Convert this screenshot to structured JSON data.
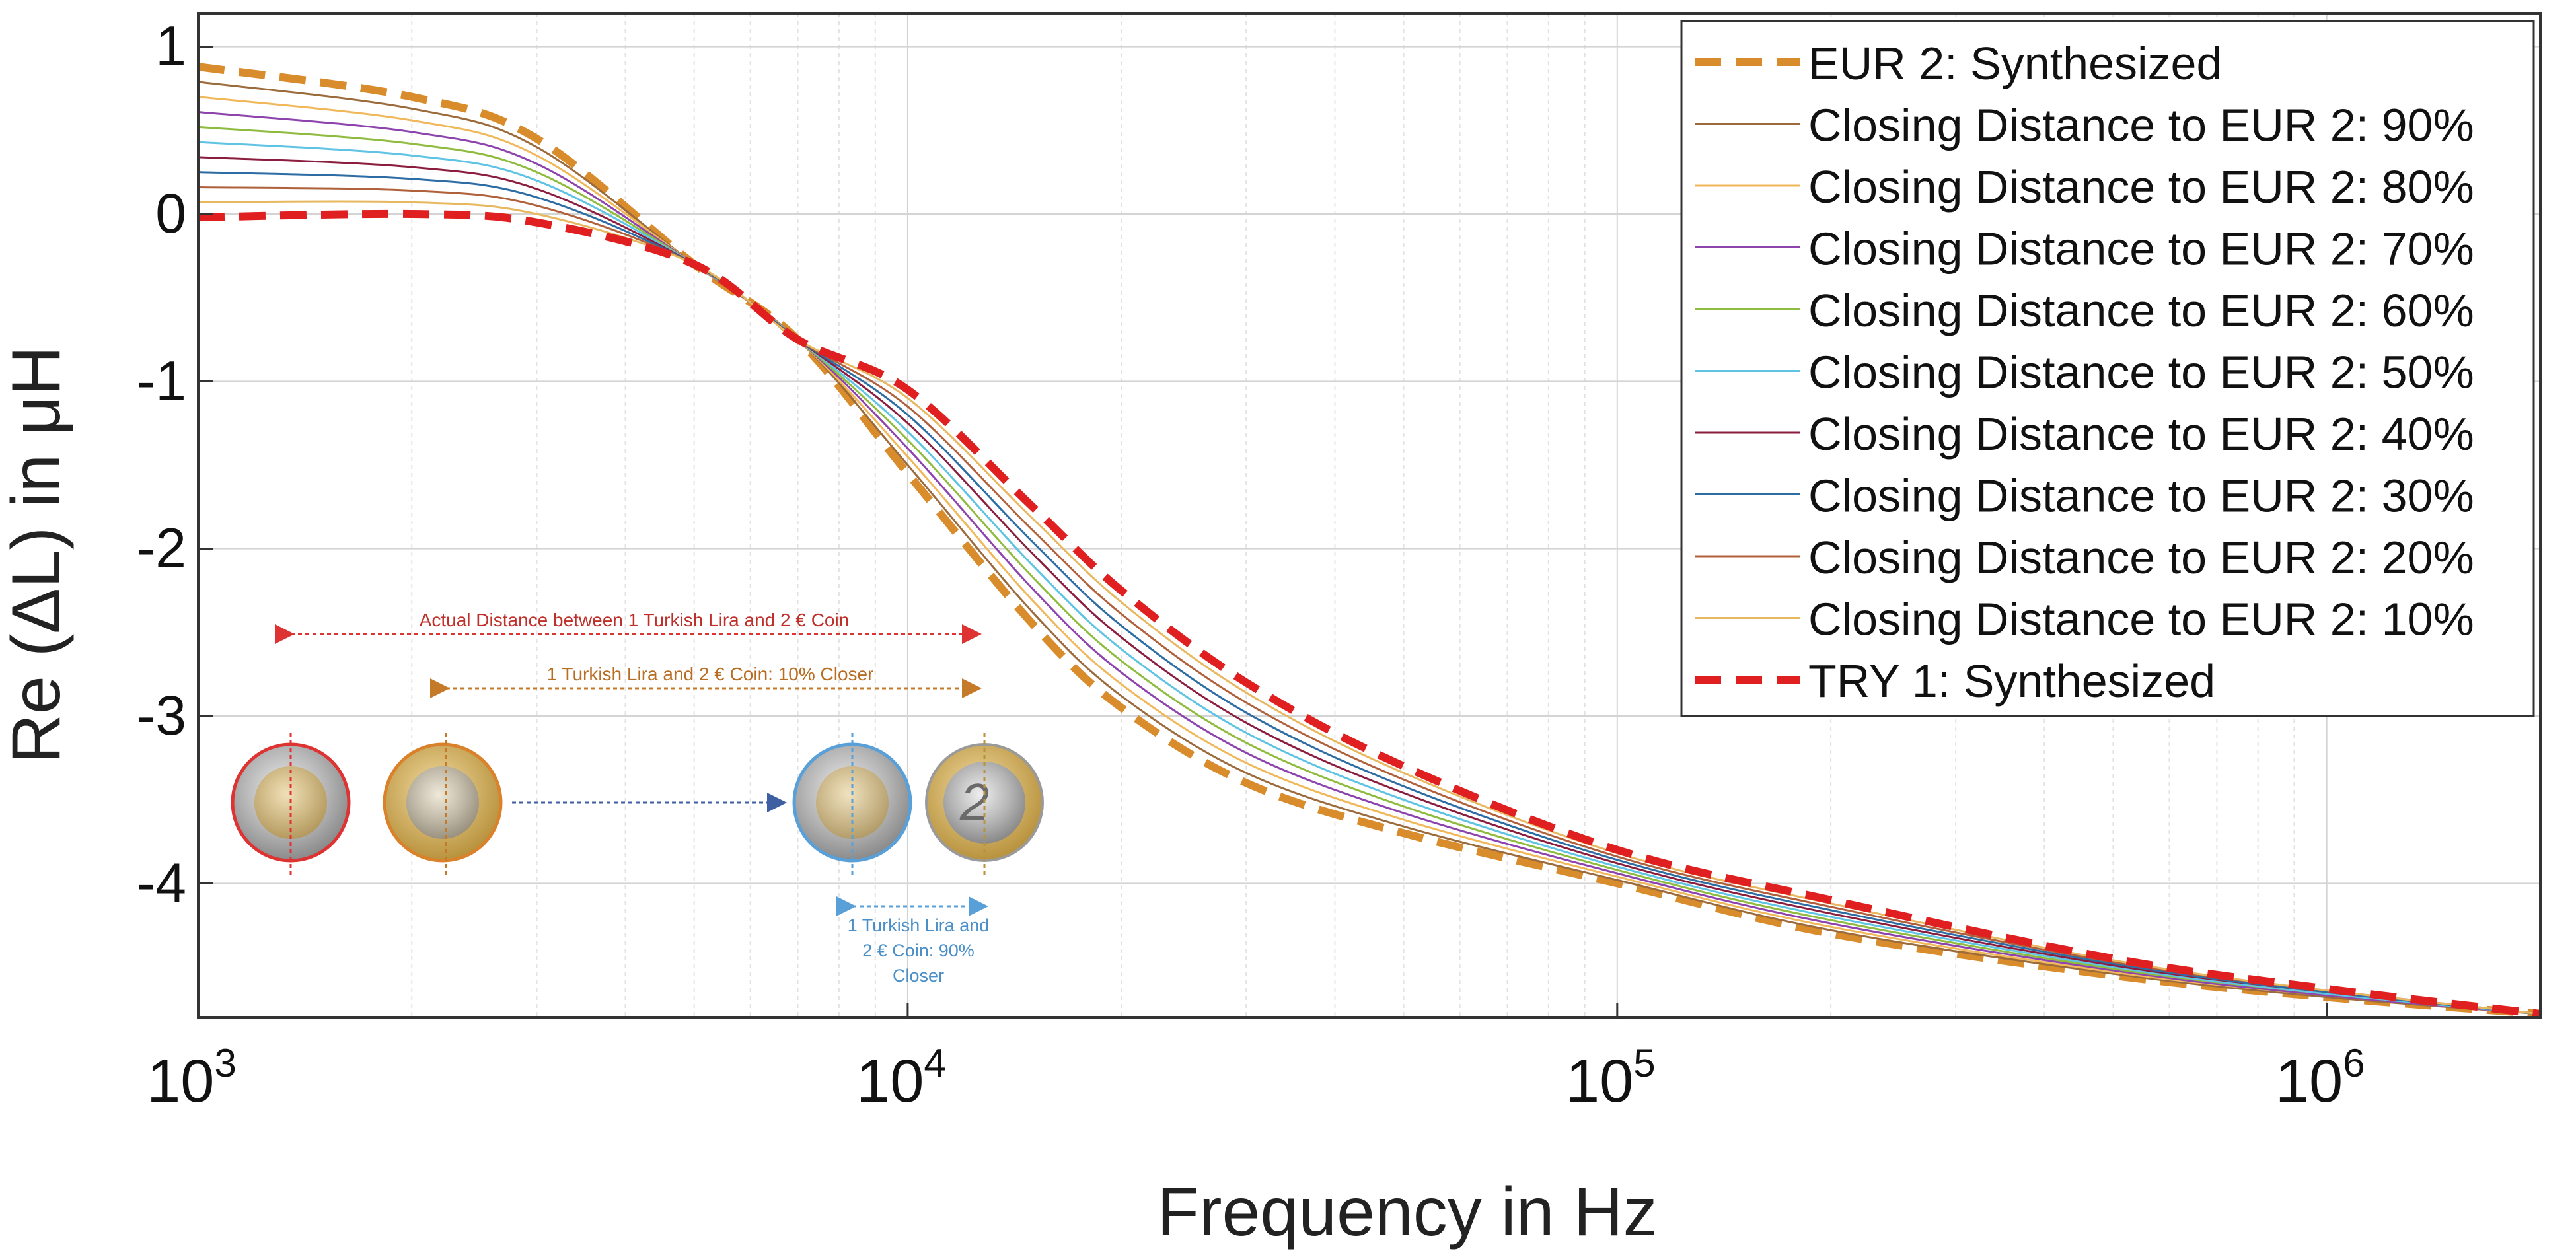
{
  "chart_data": {
    "type": "line",
    "xscale": "log",
    "xlabel": "Frequency in Hz",
    "ylabel": "Re (ΔL) in μH",
    "xlim": [
      1000,
      2000000
    ],
    "ylim": [
      -4.8,
      1.2
    ],
    "xticks": [
      {
        "value": 1000,
        "base": "10",
        "exp": "3"
      },
      {
        "value": 10000,
        "base": "10",
        "exp": "4"
      },
      {
        "value": 100000,
        "base": "10",
        "exp": "5"
      },
      {
        "value": 1000000,
        "base": "10",
        "exp": "6"
      }
    ],
    "yticks": [
      {
        "value": 1,
        "label": "1"
      },
      {
        "value": 0,
        "label": "0"
      },
      {
        "value": -1,
        "label": "-1"
      },
      {
        "value": -2,
        "label": "-2"
      },
      {
        "value": -3,
        "label": "-3"
      },
      {
        "value": -4,
        "label": "-4"
      }
    ],
    "grid": true,
    "legend_position": "top-right",
    "series": [
      {
        "name": "EUR 2: Synthesized",
        "color": "#d98c2b",
        "style": "dashed",
        "bold": true,
        "x": [
          1000,
          2000,
          3000,
          5000,
          7000,
          10000,
          15000,
          20000,
          30000,
          50000,
          100000,
          200000,
          500000,
          1000000,
          2000000
        ],
        "values": [
          0.88,
          0.7,
          0.45,
          -0.3,
          -0.75,
          -1.55,
          -2.45,
          -2.95,
          -3.4,
          -3.7,
          -4.0,
          -4.3,
          -4.55,
          -4.68,
          -4.78
        ]
      },
      {
        "name": "Closing Distance to EUR 2: 90%",
        "color": "#9c6b3c",
        "style": "solid",
        "x": [
          1000,
          2000,
          3000,
          5000,
          7000,
          10000,
          15000,
          20000,
          30000,
          50000,
          100000,
          200000,
          500000,
          1000000,
          2000000
        ],
        "values": [
          0.79,
          0.63,
          0.4,
          -0.3,
          -0.75,
          -1.5,
          -2.38,
          -2.88,
          -3.34,
          -3.66,
          -3.98,
          -4.28,
          -4.54,
          -4.68,
          -4.78
        ]
      },
      {
        "name": "Closing Distance to EUR 2: 80%",
        "color": "#f0b85a",
        "style": "solid",
        "x": [
          1000,
          2000,
          3000,
          5000,
          7000,
          10000,
          15000,
          20000,
          30000,
          50000,
          100000,
          200000,
          500000,
          1000000,
          2000000
        ],
        "values": [
          0.7,
          0.56,
          0.35,
          -0.3,
          -0.75,
          -1.45,
          -2.31,
          -2.81,
          -3.28,
          -3.62,
          -3.96,
          -4.26,
          -4.53,
          -4.67,
          -4.78
        ]
      },
      {
        "name": "Closing Distance to EUR 2: 70%",
        "color": "#8e44ad",
        "style": "solid",
        "x": [
          1000,
          2000,
          3000,
          5000,
          7000,
          10000,
          15000,
          20000,
          30000,
          50000,
          100000,
          200000,
          500000,
          1000000,
          2000000
        ],
        "values": [
          0.61,
          0.49,
          0.3,
          -0.3,
          -0.75,
          -1.4,
          -2.24,
          -2.74,
          -3.22,
          -3.58,
          -3.94,
          -4.24,
          -4.52,
          -4.67,
          -4.78
        ]
      },
      {
        "name": "Closing Distance to EUR 2: 60%",
        "color": "#8fbc3f",
        "style": "solid",
        "x": [
          1000,
          2000,
          3000,
          5000,
          7000,
          10000,
          15000,
          20000,
          30000,
          50000,
          100000,
          200000,
          500000,
          1000000,
          2000000
        ],
        "values": [
          0.52,
          0.42,
          0.25,
          -0.3,
          -0.75,
          -1.35,
          -2.17,
          -2.67,
          -3.16,
          -3.54,
          -3.92,
          -4.22,
          -4.51,
          -4.66,
          -4.78
        ]
      },
      {
        "name": "Closing Distance to EUR 2: 50%",
        "color": "#5fc3e4",
        "style": "solid",
        "x": [
          1000,
          2000,
          3000,
          5000,
          7000,
          10000,
          15000,
          20000,
          30000,
          50000,
          100000,
          200000,
          500000,
          1000000,
          2000000
        ],
        "values": [
          0.43,
          0.35,
          0.2,
          -0.3,
          -0.75,
          -1.3,
          -2.1,
          -2.6,
          -3.1,
          -3.5,
          -3.9,
          -4.2,
          -4.5,
          -4.66,
          -4.78
        ]
      },
      {
        "name": "Closing Distance to EUR 2: 40%",
        "color": "#8b1e3f",
        "style": "solid",
        "x": [
          1000,
          2000,
          3000,
          5000,
          7000,
          10000,
          15000,
          20000,
          30000,
          50000,
          100000,
          200000,
          500000,
          1000000,
          2000000
        ],
        "values": [
          0.34,
          0.28,
          0.15,
          -0.3,
          -0.75,
          -1.25,
          -2.03,
          -2.53,
          -3.04,
          -3.46,
          -3.88,
          -4.18,
          -4.49,
          -4.65,
          -4.78
        ]
      },
      {
        "name": "Closing Distance to EUR 2: 30%",
        "color": "#2e6da4",
        "style": "solid",
        "x": [
          1000,
          2000,
          3000,
          5000,
          7000,
          10000,
          15000,
          20000,
          30000,
          50000,
          100000,
          200000,
          500000,
          1000000,
          2000000
        ],
        "values": [
          0.25,
          0.21,
          0.1,
          -0.3,
          -0.75,
          -1.2,
          -1.96,
          -2.46,
          -2.98,
          -3.42,
          -3.86,
          -4.16,
          -4.48,
          -4.65,
          -4.78
        ]
      },
      {
        "name": "Closing Distance to EUR 2: 20%",
        "color": "#b0603a",
        "style": "solid",
        "x": [
          1000,
          2000,
          3000,
          5000,
          7000,
          10000,
          15000,
          20000,
          30000,
          50000,
          100000,
          200000,
          500000,
          1000000,
          2000000
        ],
        "values": [
          0.16,
          0.14,
          0.05,
          -0.3,
          -0.75,
          -1.15,
          -1.89,
          -2.39,
          -2.92,
          -3.38,
          -3.84,
          -4.14,
          -4.47,
          -4.64,
          -4.78
        ]
      },
      {
        "name": "Closing Distance to EUR 2: 10%",
        "color": "#e8b860",
        "style": "solid",
        "x": [
          1000,
          2000,
          3000,
          5000,
          7000,
          10000,
          15000,
          20000,
          30000,
          50000,
          100000,
          200000,
          500000,
          1000000,
          2000000
        ],
        "values": [
          0.07,
          0.07,
          0.0,
          -0.3,
          -0.75,
          -1.1,
          -1.82,
          -2.32,
          -2.86,
          -3.34,
          -3.82,
          -4.12,
          -4.46,
          -4.64,
          -4.78
        ]
      },
      {
        "name": "TRY 1: Synthesized",
        "color": "#e02020",
        "style": "dashed",
        "bold": true,
        "x": [
          1000,
          2000,
          3000,
          5000,
          7000,
          10000,
          15000,
          20000,
          30000,
          50000,
          100000,
          200000,
          500000,
          1000000,
          2000000
        ],
        "values": [
          -0.02,
          0.0,
          -0.05,
          -0.3,
          -0.75,
          -1.05,
          -1.75,
          -2.25,
          -2.8,
          -3.3,
          -3.8,
          -4.1,
          -4.45,
          -4.63,
          -4.78
        ]
      }
    ],
    "annotations": {
      "arrow_actual": "Actual Distance between 1 Turkish Lira and 2 € Coin",
      "arrow_10": "1 Turkish Lira and 2 € Coin: 10% Closer",
      "arrow_90_line1": "1 Turkish Lira and",
      "arrow_90_line2": "2 € Coin: 90%",
      "arrow_90_line3": "Closer",
      "coin_label": "2"
    }
  }
}
